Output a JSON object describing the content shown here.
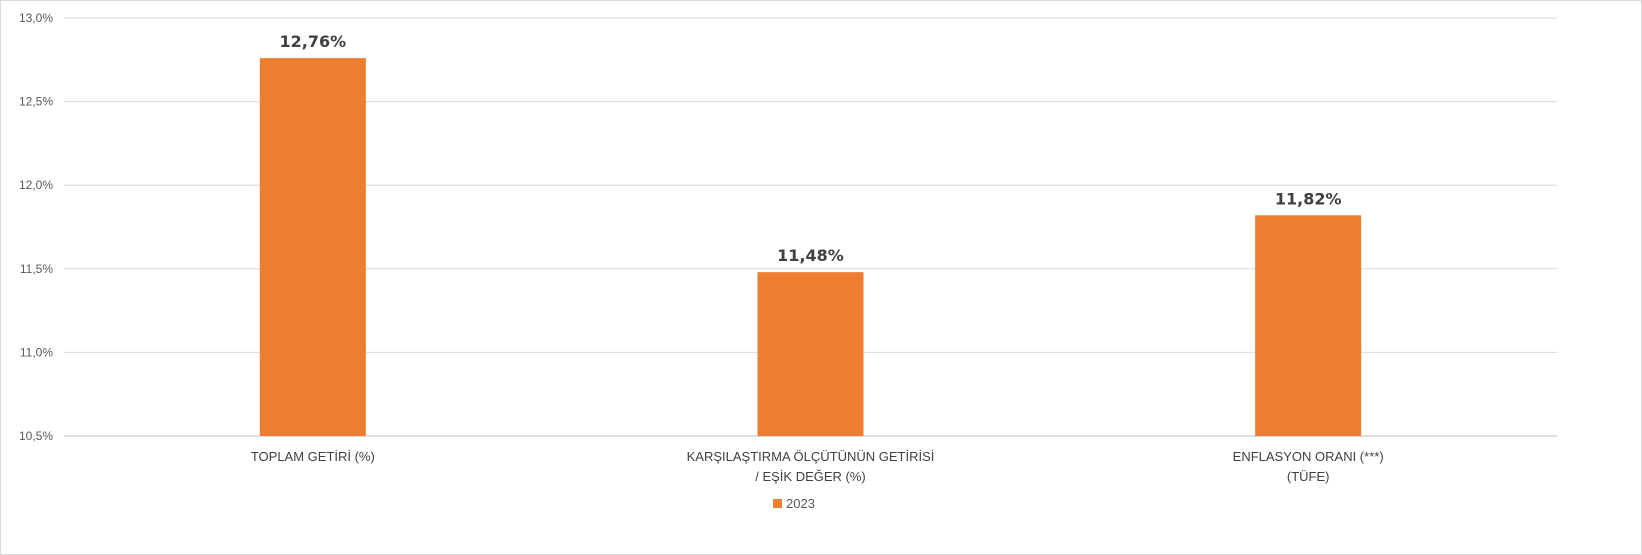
{
  "chart_data": {
    "type": "bar",
    "categories": [
      [
        "TOPLAM GETİRİ (%)"
      ],
      [
        "KARŞILAŞTIRMA ÖLÇÜTÜNÜN GETİRİSİ",
        "/ EŞİK DEĞER (%)"
      ],
      [
        "ENFLASYON ORANI (***)",
        "(TÜFE)"
      ]
    ],
    "series": [
      {
        "name": "2023",
        "values": [
          12.76,
          11.48,
          11.82
        ],
        "data_labels": [
          "12,76%",
          "11,48%",
          "11,82%"
        ],
        "color": "#ED7D31"
      }
    ],
    "ylim": [
      10.5,
      13.0
    ],
    "yticks": [
      10.5,
      11.0,
      11.5,
      12.0,
      12.5,
      13.0
    ],
    "ytick_labels": [
      "10,5%",
      "11,0%",
      "11,5%",
      "12,0%",
      "12,5%",
      "13,0%"
    ],
    "grid": true,
    "legend_position": "bottom",
    "gridline_color": "#d9d9d9",
    "axis_color": "#bfbfbf"
  }
}
